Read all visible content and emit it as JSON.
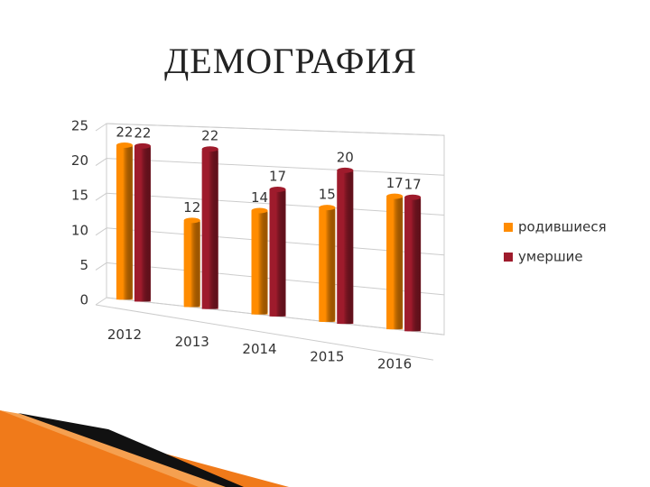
{
  "chart_data": {
    "type": "bar",
    "title": "ДЕМОГРАФИЯ",
    "categories": [
      "2012",
      "2013",
      "2014",
      "2015",
      "2016"
    ],
    "series": [
      {
        "name": "родившиеся",
        "color": "#ff8c00",
        "values": [
          22,
          12,
          14,
          15,
          17
        ]
      },
      {
        "name": "умершие",
        "color": "#9e1b2c",
        "values": [
          22,
          22,
          17,
          20,
          17
        ]
      }
    ],
    "ylim": [
      0,
      25
    ],
    "yticks": [
      0,
      5,
      10,
      15,
      20,
      25
    ],
    "grid": true,
    "legend": "right"
  }
}
